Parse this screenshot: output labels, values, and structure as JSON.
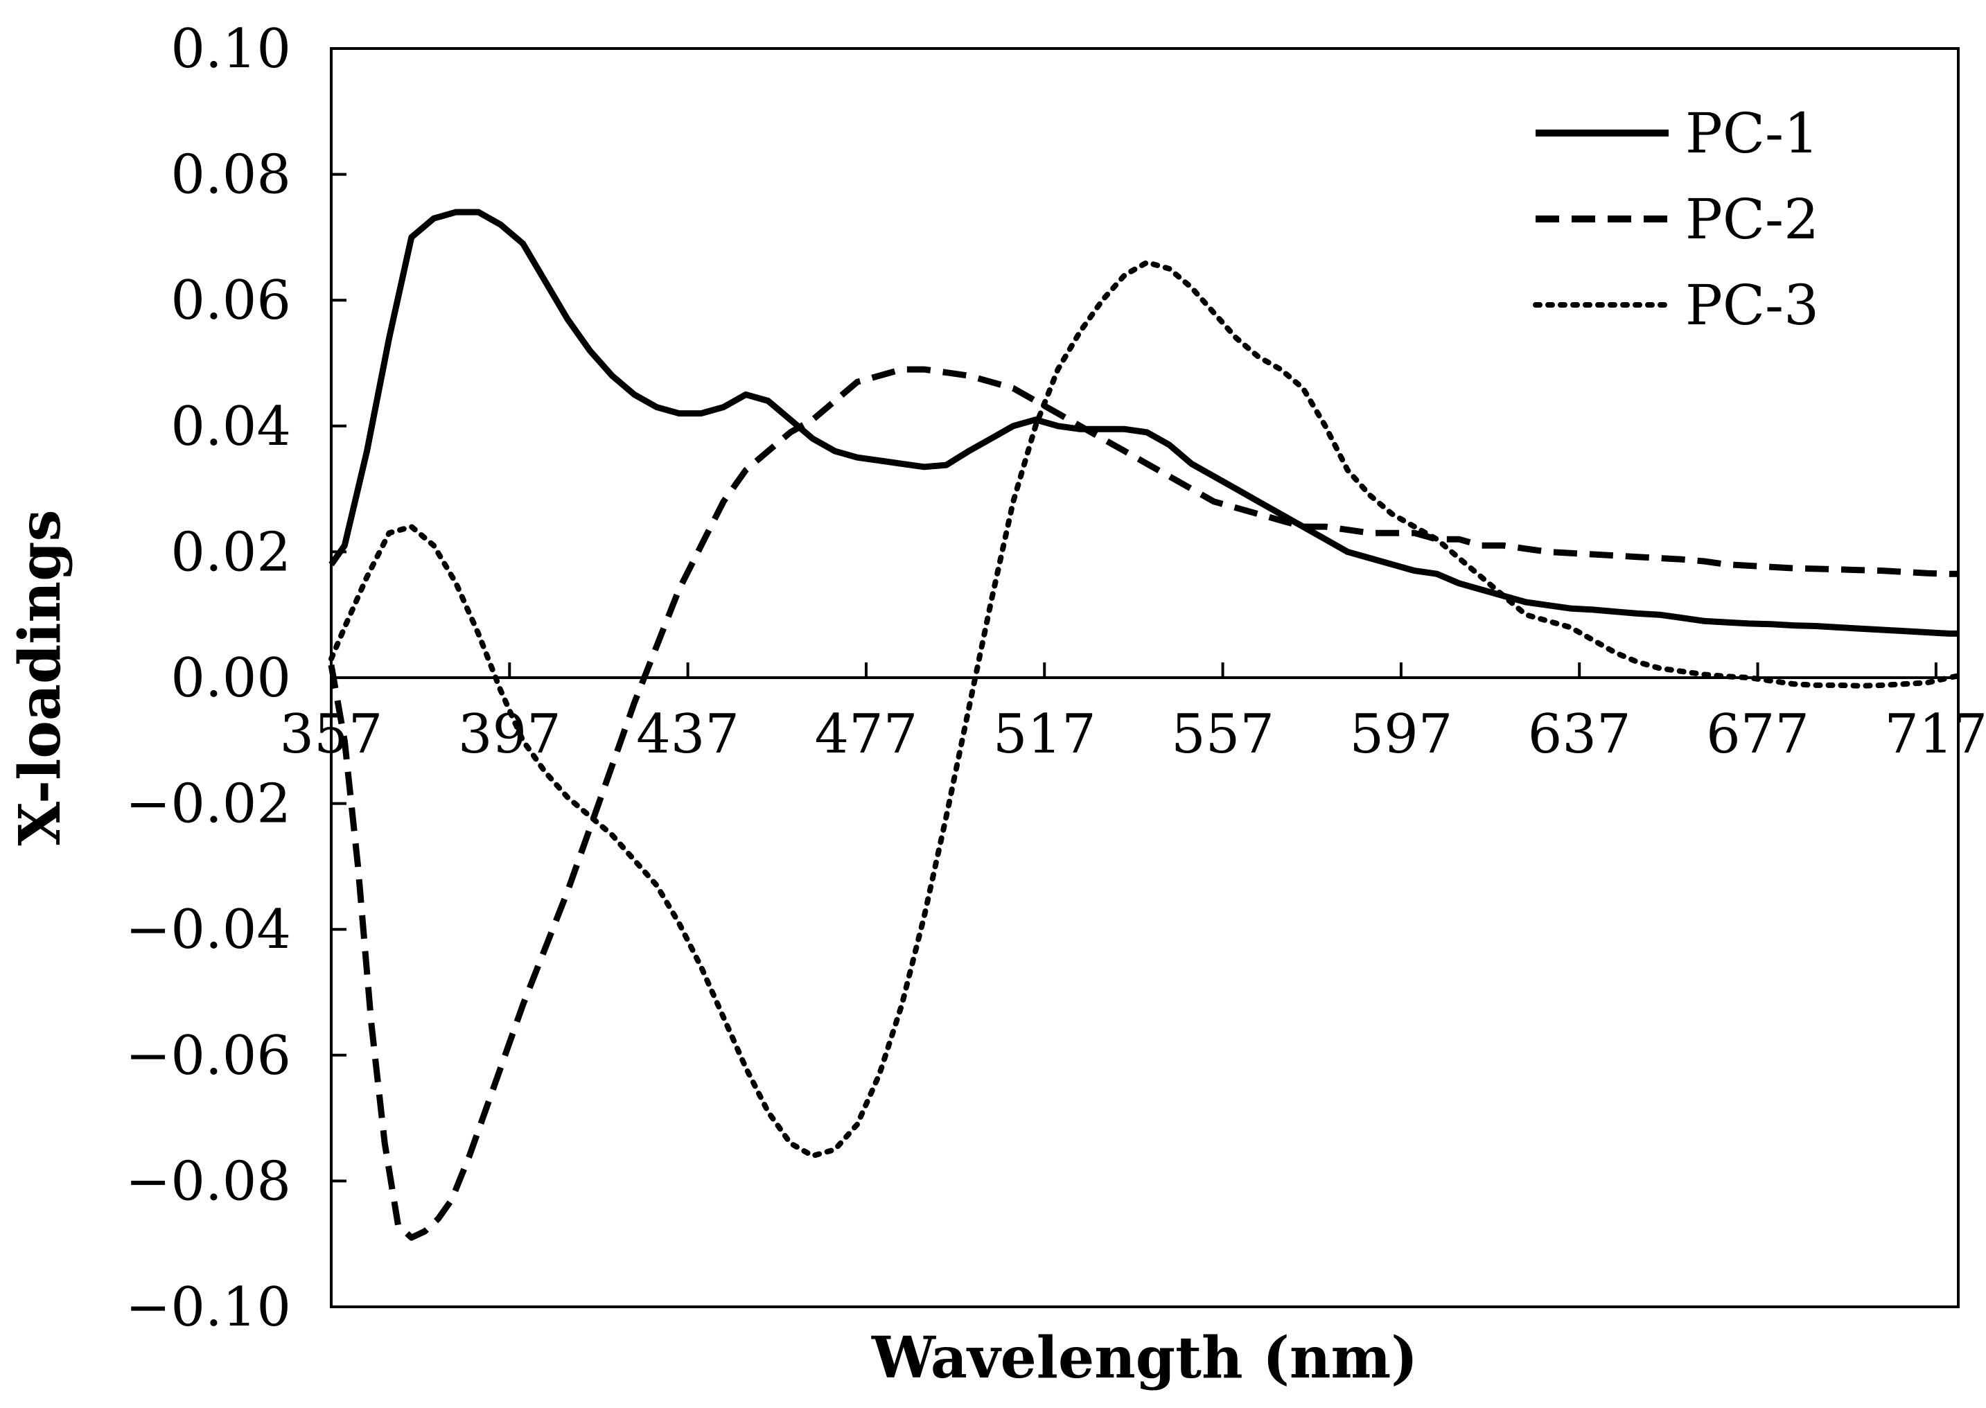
{
  "chart_data": {
    "type": "line",
    "title": "",
    "xlabel": "Wavelength (nm)",
    "ylabel": "X-loadings",
    "xlim": [
      357,
      722
    ],
    "ylim": [
      -0.1,
      0.1
    ],
    "x_ticks": [
      357,
      397,
      437,
      477,
      517,
      557,
      597,
      637,
      677,
      717
    ],
    "x_tick_labels": [
      "357",
      "397",
      "437",
      "477",
      "517",
      "557",
      "597",
      "637",
      "677",
      "717"
    ],
    "y_ticks": [
      0.1,
      0.08,
      0.06,
      0.04,
      0.02,
      0.0,
      -0.02,
      -0.04,
      -0.06,
      -0.08,
      -0.1
    ],
    "y_tick_labels": [
      "0.10",
      "0.08",
      "0.06",
      "0.04",
      "0.02",
      "0.00",
      "−0.02",
      "−0.04",
      "−0.06",
      "−0.08",
      "−0.10"
    ],
    "grid": false,
    "legend_position": "top-right",
    "series": [
      {
        "name": "PC-1",
        "style": "solid",
        "color": "#000000",
        "points": [
          [
            357,
            0.018
          ],
          [
            360,
            0.021
          ],
          [
            365,
            0.036
          ],
          [
            370,
            0.054
          ],
          [
            375,
            0.07
          ],
          [
            380,
            0.073
          ],
          [
            385,
            0.074
          ],
          [
            390,
            0.074
          ],
          [
            395,
            0.072
          ],
          [
            400,
            0.069
          ],
          [
            405,
            0.063
          ],
          [
            410,
            0.057
          ],
          [
            415,
            0.052
          ],
          [
            420,
            0.048
          ],
          [
            425,
            0.045
          ],
          [
            430,
            0.043
          ],
          [
            435,
            0.042
          ],
          [
            440,
            0.042
          ],
          [
            445,
            0.043
          ],
          [
            450,
            0.045
          ],
          [
            455,
            0.044
          ],
          [
            460,
            0.041
          ],
          [
            465,
            0.038
          ],
          [
            470,
            0.036
          ],
          [
            475,
            0.035
          ],
          [
            480,
            0.0345
          ],
          [
            485,
            0.034
          ],
          [
            490,
            0.0335
          ],
          [
            495,
            0.0338
          ],
          [
            500,
            0.036
          ],
          [
            505,
            0.038
          ],
          [
            510,
            0.04
          ],
          [
            515,
            0.041
          ],
          [
            520,
            0.04
          ],
          [
            525,
            0.0395
          ],
          [
            530,
            0.0395
          ],
          [
            535,
            0.0395
          ],
          [
            540,
            0.039
          ],
          [
            545,
            0.037
          ],
          [
            550,
            0.034
          ],
          [
            555,
            0.032
          ],
          [
            560,
            0.03
          ],
          [
            565,
            0.028
          ],
          [
            570,
            0.026
          ],
          [
            575,
            0.024
          ],
          [
            580,
            0.022
          ],
          [
            585,
            0.02
          ],
          [
            590,
            0.019
          ],
          [
            595,
            0.018
          ],
          [
            600,
            0.017
          ],
          [
            605,
            0.0165
          ],
          [
            610,
            0.015
          ],
          [
            615,
            0.014
          ],
          [
            620,
            0.013
          ],
          [
            625,
            0.012
          ],
          [
            630,
            0.0115
          ],
          [
            635,
            0.011
          ],
          [
            640,
            0.0108
          ],
          [
            645,
            0.0105
          ],
          [
            650,
            0.0102
          ],
          [
            655,
            0.01
          ],
          [
            660,
            0.0095
          ],
          [
            665,
            0.009
          ],
          [
            670,
            0.0088
          ],
          [
            675,
            0.0086
          ],
          [
            680,
            0.0085
          ],
          [
            685,
            0.0083
          ],
          [
            690,
            0.0082
          ],
          [
            695,
            0.008
          ],
          [
            700,
            0.0078
          ],
          [
            705,
            0.0076
          ],
          [
            710,
            0.0074
          ],
          [
            715,
            0.0072
          ],
          [
            720,
            0.007
          ],
          [
            722,
            0.007
          ]
        ]
      },
      {
        "name": "PC-2",
        "style": "dashed",
        "color": "#000000",
        "points": [
          [
            357,
            0.002
          ],
          [
            360,
            -0.01
          ],
          [
            363,
            -0.03
          ],
          [
            366,
            -0.055
          ],
          [
            369,
            -0.074
          ],
          [
            372,
            -0.087
          ],
          [
            375,
            -0.089
          ],
          [
            378,
            -0.088
          ],
          [
            381,
            -0.086
          ],
          [
            384,
            -0.083
          ],
          [
            388,
            -0.076
          ],
          [
            392,
            -0.068
          ],
          [
            396,
            -0.06
          ],
          [
            400,
            -0.052
          ],
          [
            405,
            -0.043
          ],
          [
            410,
            -0.034
          ],
          [
            415,
            -0.024
          ],
          [
            420,
            -0.014
          ],
          [
            425,
            -0.004
          ],
          [
            430,
            0.005
          ],
          [
            435,
            0.014
          ],
          [
            440,
            0.021
          ],
          [
            445,
            0.028
          ],
          [
            450,
            0.033
          ],
          [
            455,
            0.036
          ],
          [
            460,
            0.039
          ],
          [
            465,
            0.041
          ],
          [
            470,
            0.044
          ],
          [
            475,
            0.047
          ],
          [
            480,
            0.048
          ],
          [
            485,
            0.049
          ],
          [
            490,
            0.049
          ],
          [
            495,
            0.0485
          ],
          [
            500,
            0.048
          ],
          [
            505,
            0.047
          ],
          [
            510,
            0.046
          ],
          [
            515,
            0.044
          ],
          [
            520,
            0.042
          ],
          [
            525,
            0.04
          ],
          [
            530,
            0.038
          ],
          [
            535,
            0.036
          ],
          [
            540,
            0.034
          ],
          [
            545,
            0.032
          ],
          [
            550,
            0.03
          ],
          [
            555,
            0.028
          ],
          [
            560,
            0.027
          ],
          [
            565,
            0.026
          ],
          [
            570,
            0.025
          ],
          [
            575,
            0.024
          ],
          [
            580,
            0.024
          ],
          [
            585,
            0.0235
          ],
          [
            590,
            0.023
          ],
          [
            595,
            0.023
          ],
          [
            600,
            0.023
          ],
          [
            605,
            0.022
          ],
          [
            610,
            0.022
          ],
          [
            615,
            0.021
          ],
          [
            620,
            0.021
          ],
          [
            625,
            0.0205
          ],
          [
            630,
            0.02
          ],
          [
            635,
            0.0198
          ],
          [
            640,
            0.0196
          ],
          [
            645,
            0.0194
          ],
          [
            650,
            0.0192
          ],
          [
            655,
            0.019
          ],
          [
            660,
            0.0188
          ],
          [
            665,
            0.0185
          ],
          [
            670,
            0.018
          ],
          [
            675,
            0.0178
          ],
          [
            680,
            0.0176
          ],
          [
            685,
            0.0174
          ],
          [
            690,
            0.0173
          ],
          [
            695,
            0.0172
          ],
          [
            700,
            0.0171
          ],
          [
            705,
            0.017
          ],
          [
            710,
            0.0168
          ],
          [
            715,
            0.0166
          ],
          [
            720,
            0.0165
          ],
          [
            722,
            0.0165
          ]
        ]
      },
      {
        "name": "PC-3",
        "style": "dotted",
        "color": "#000000",
        "points": [
          [
            357,
            0.003
          ],
          [
            360,
            0.008
          ],
          [
            365,
            0.016
          ],
          [
            370,
            0.023
          ],
          [
            375,
            0.024
          ],
          [
            380,
            0.021
          ],
          [
            385,
            0.015
          ],
          [
            390,
            0.007
          ],
          [
            395,
            -0.002
          ],
          [
            400,
            -0.01
          ],
          [
            405,
            -0.015
          ],
          [
            410,
            -0.019
          ],
          [
            415,
            -0.022
          ],
          [
            420,
            -0.025
          ],
          [
            425,
            -0.029
          ],
          [
            430,
            -0.033
          ],
          [
            435,
            -0.039
          ],
          [
            440,
            -0.046
          ],
          [
            445,
            -0.054
          ],
          [
            450,
            -0.062
          ],
          [
            455,
            -0.069
          ],
          [
            460,
            -0.074
          ],
          [
            465,
            -0.076
          ],
          [
            470,
            -0.075
          ],
          [
            475,
            -0.071
          ],
          [
            480,
            -0.063
          ],
          [
            485,
            -0.052
          ],
          [
            490,
            -0.038
          ],
          [
            495,
            -0.022
          ],
          [
            500,
            -0.005
          ],
          [
            505,
            0.012
          ],
          [
            510,
            0.028
          ],
          [
            515,
            0.04
          ],
          [
            520,
            0.049
          ],
          [
            525,
            0.055
          ],
          [
            530,
            0.06
          ],
          [
            535,
            0.064
          ],
          [
            540,
            0.066
          ],
          [
            545,
            0.065
          ],
          [
            550,
            0.062
          ],
          [
            555,
            0.058
          ],
          [
            560,
            0.054
          ],
          [
            565,
            0.051
          ],
          [
            570,
            0.049
          ],
          [
            575,
            0.046
          ],
          [
            580,
            0.04
          ],
          [
            585,
            0.033
          ],
          [
            590,
            0.029
          ],
          [
            595,
            0.026
          ],
          [
            600,
            0.024
          ],
          [
            605,
            0.022
          ],
          [
            610,
            0.019
          ],
          [
            615,
            0.016
          ],
          [
            620,
            0.013
          ],
          [
            625,
            0.01
          ],
          [
            630,
            0.009
          ],
          [
            635,
            0.008
          ],
          [
            640,
            0.006
          ],
          [
            645,
            0.004
          ],
          [
            650,
            0.0025
          ],
          [
            655,
            0.0015
          ],
          [
            660,
            0.001
          ],
          [
            665,
            0.0005
          ],
          [
            670,
            0.0002
          ],
          [
            675,
            0.0
          ],
          [
            680,
            -0.0005
          ],
          [
            685,
            -0.001
          ],
          [
            690,
            -0.0012
          ],
          [
            695,
            -0.0012
          ],
          [
            700,
            -0.0013
          ],
          [
            705,
            -0.0012
          ],
          [
            710,
            -0.001
          ],
          [
            715,
            -0.0008
          ],
          [
            720,
            0.0
          ],
          [
            722,
            0.0003
          ]
        ]
      }
    ]
  }
}
